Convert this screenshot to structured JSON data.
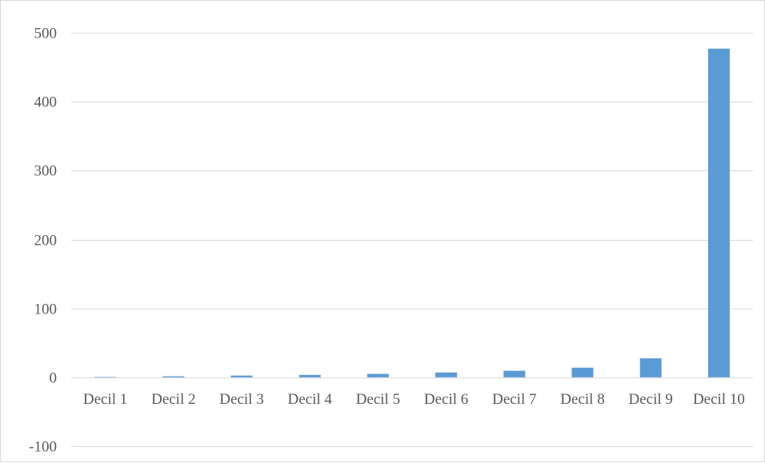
{
  "chart_data": {
    "type": "bar",
    "categories": [
      "Decil 1",
      "Decil 2",
      "Decil 3",
      "Decil 4",
      "Decil 5",
      "Decil 6",
      "Decil 7",
      "Decil 8",
      "Decil 9",
      "Decil 10"
    ],
    "series": [
      {
        "values": [
          0.5,
          1.5,
          2.5,
          3.5,
          5,
          7,
          9.5,
          14,
          27.5,
          477
        ]
      }
    ],
    "ylim": [
      -100,
      500
    ],
    "yticks": [
      -100,
      0,
      100,
      200,
      300,
      400,
      500
    ],
    "ytick_labels": [
      "-100",
      "0",
      "100",
      "200",
      "300",
      "400",
      "500"
    ],
    "title": "",
    "xlabel": "",
    "ylabel": "",
    "grid": true,
    "legend": "none",
    "colors": {
      "bar": "#5b9bd5",
      "grid": "#d9d9d9",
      "text": "#595959",
      "border": "#d9d9d9"
    }
  }
}
